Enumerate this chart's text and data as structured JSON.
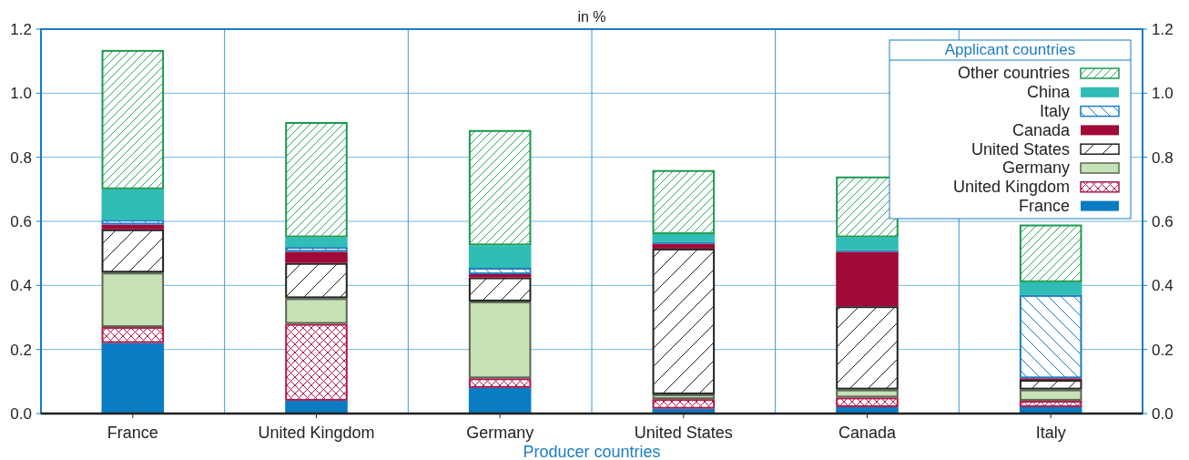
{
  "chart_data": {
    "type": "bar",
    "stacked": true,
    "subtitle": "in %",
    "xlabel": "Producer countries",
    "legend_title": "Applicant countries",
    "legend": "top right",
    "grid": true,
    "categories": [
      "France",
      "United Kingdom",
      "Germany",
      "United States",
      "Canada",
      "Italy"
    ],
    "ylim": [
      0,
      1.2
    ],
    "yticks": [
      {
        "value": 0,
        "label": "0.0"
      },
      0.2,
      0.4,
      0.6,
      0.8,
      {
        "value": 1,
        "label": "1.0"
      },
      1.2
    ],
    "y2lim": [
      0,
      1.2
    ],
    "y2ticks": [
      {
        "value": 0,
        "label": "0.0"
      },
      0.2,
      0.4,
      0.6,
      0.8,
      {
        "value": 1,
        "label": "1.0"
      },
      1.2
    ],
    "series": [
      {
        "name": "France",
        "color": "#0a7cc4",
        "values": [
          0.22,
          0.04,
          0.08,
          0.015,
          0.02,
          0.02
        ]
      },
      {
        "name": "United Kingdom",
        "color": "#b0174a",
        "values": [
          0.05,
          0.24,
          0.03,
          0.03,
          0.03,
          0.02
        ]
      },
      {
        "name": "Germany",
        "color": "#c7e2b6",
        "values": [
          0.17,
          0.08,
          0.24,
          0.015,
          0.025,
          0.035
        ]
      },
      {
        "name": "United States",
        "color": "#222222",
        "values": [
          0.135,
          0.11,
          0.075,
          0.455,
          0.26,
          0.03
        ]
      },
      {
        "name": "Canada",
        "color": "#a00a36",
        "values": [
          0.015,
          0.035,
          0.01,
          0.015,
          0.17,
          0.005
        ]
      },
      {
        "name": "Italy",
        "color": "#1a7cc4",
        "values": [
          0.015,
          0.015,
          0.02,
          0.005,
          0.005,
          0.26
        ]
      },
      {
        "name": "China",
        "color": "#2fbdb5",
        "values": [
          0.095,
          0.03,
          0.07,
          0.025,
          0.04,
          0.04
        ]
      },
      {
        "name": "Other countries",
        "color": "#1a9a50",
        "values": [
          0.435,
          0.36,
          0.36,
          0.2,
          0.19,
          0.18
        ]
      }
    ]
  }
}
